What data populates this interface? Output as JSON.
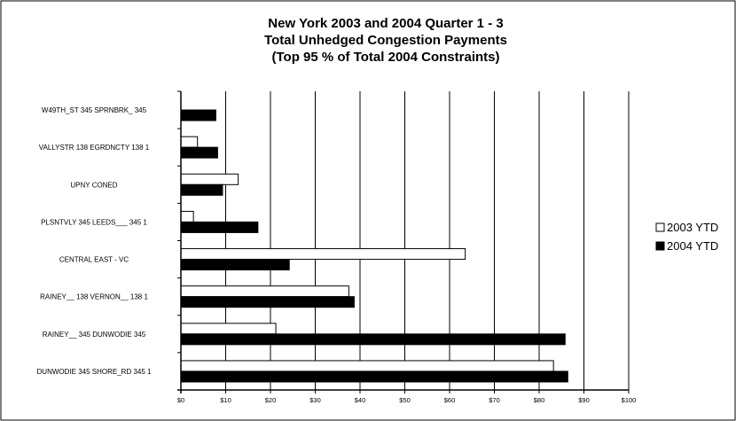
{
  "chart_data": {
    "type": "bar",
    "orientation": "horizontal",
    "title": [
      "New York 2003 and 2004 Quarter 1 - 3",
      "Total Unhedged Congestion Payments",
      "(Top 95 % of Total 2004 Constraints)"
    ],
    "xlabel": "",
    "ylabel": "",
    "categories": [
      "W49TH_ST 345 SPRNBRK_ 345",
      "VALLYSTR 138 EGRDNCTY 138 1",
      "UPNY CONED",
      "PLSNTVLY 345 LEEDS___ 345 1",
      "CENTRAL EAST - VC",
      "RAINEY__ 138 VERNON__ 138 1",
      "RAINEY__ 345 DUNWODIE 345",
      "DUNWODIE 345 SHORE_RD 345 1"
    ],
    "series": [
      {
        "name": "2003 YTD",
        "color": "#ffffff",
        "values": [
          0,
          3.7,
          12.8,
          2.8,
          63.5,
          37.5,
          21.2,
          83.2
        ]
      },
      {
        "name": "2004 YTD",
        "color": "#000000",
        "values": [
          7.8,
          8.2,
          9.3,
          17.2,
          24.2,
          38.7,
          85.8,
          86.4
        ]
      }
    ],
    "xlim": [
      0,
      100
    ],
    "x_ticks": [
      "$0",
      "$10",
      "$20",
      "$30",
      "$40",
      "$50",
      "$60",
      "$70",
      "$80",
      "$90",
      "$100"
    ],
    "grid": "vertical",
    "legend_position": "right"
  }
}
